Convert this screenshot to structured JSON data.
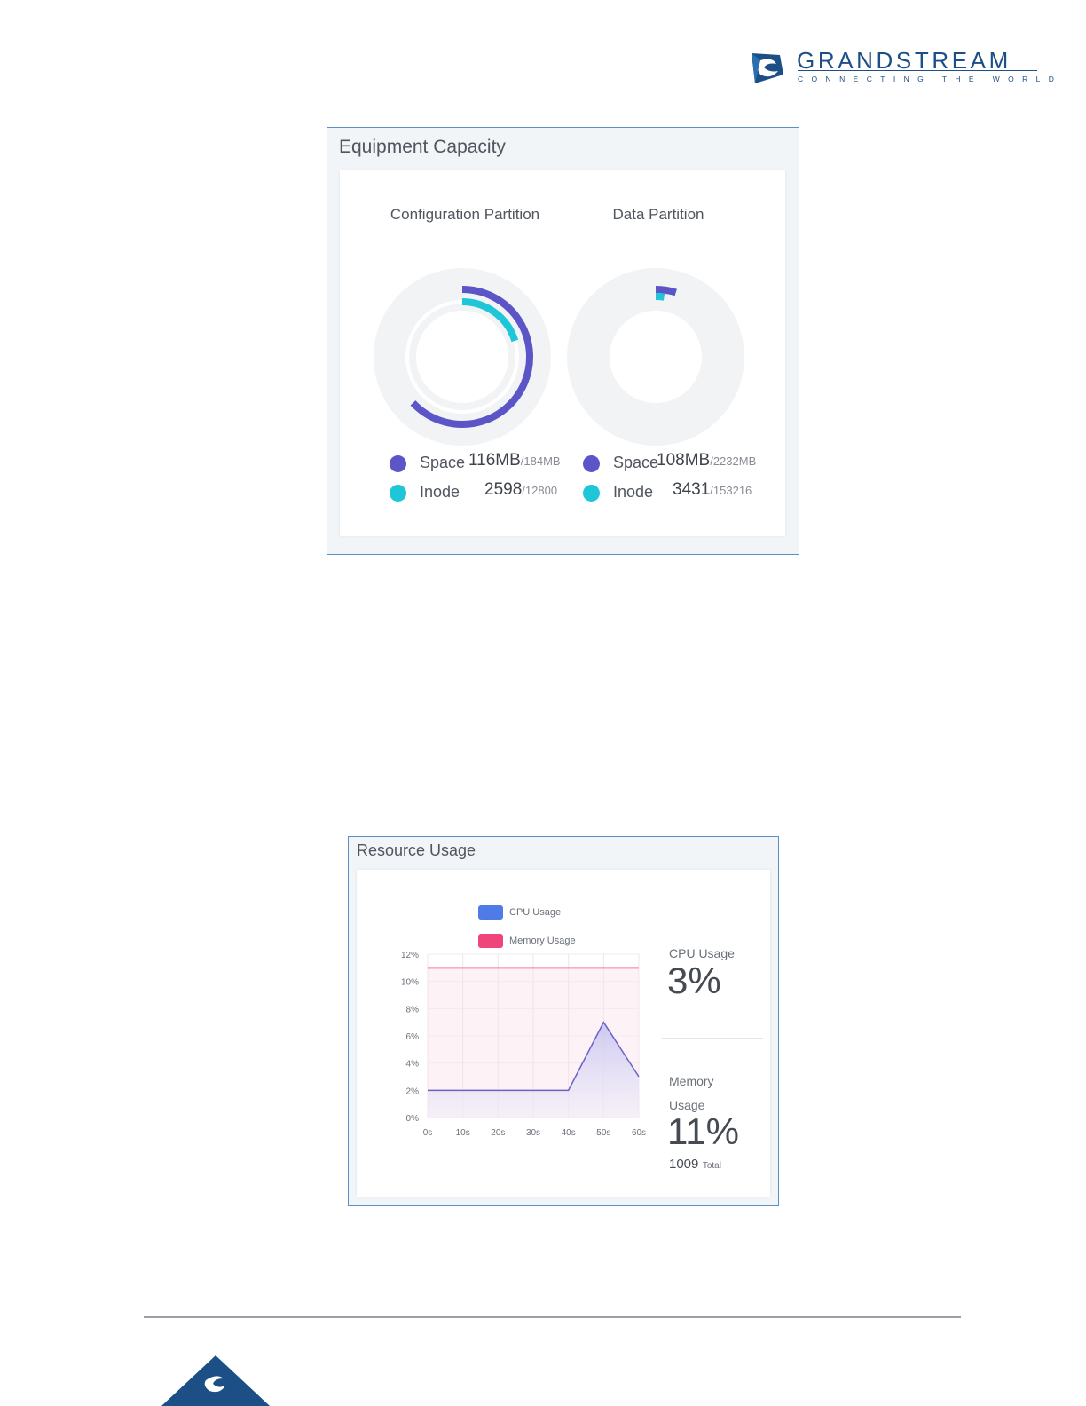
{
  "brand": {
    "name": "GRANDSTREAM",
    "tagline": "CONNECTING THE WORLD",
    "primary_color": "#1c4f86"
  },
  "equipment_capacity": {
    "title": "Equipment Capacity",
    "colors": {
      "space": "#5b55c7",
      "inode": "#1ec6d8",
      "track": "#f2f3f5"
    },
    "partitions": [
      {
        "title": "Configuration Partition",
        "space": {
          "label": "Space",
          "used": "116MB",
          "total": "/184MB",
          "used_mb": 116,
          "total_mb": 184
        },
        "inode": {
          "label": "Inode",
          "used": "2598",
          "total": "/12800",
          "used_count": 2598,
          "total_count": 12800
        }
      },
      {
        "title": "Data Partition",
        "space": {
          "label": "Space",
          "used": "108MB",
          "total": "/2232MB",
          "used_mb": 108,
          "total_mb": 2232
        },
        "inode": {
          "label": "Inode",
          "used": "3431",
          "total": "/153216",
          "used_count": 3431,
          "total_count": 153216
        }
      }
    ]
  },
  "resource_usage": {
    "title": "Resource Usage",
    "legend": {
      "cpu": "CPU Usage",
      "memory": "Memory Usage"
    },
    "colors": {
      "cpu": "#4f7be6",
      "memory": "#f0457a",
      "cpu_line": "#6a62c9",
      "memory_line": "#f47c98"
    },
    "cpu_label": "CPU Usage",
    "cpu_value": "3%",
    "memory_label_line1": "Memory",
    "memory_label_line2": "Usage",
    "memory_value": "11%",
    "memory_total_number": "1009",
    "memory_total_word": "Total"
  },
  "chart_data": {
    "type": "line",
    "x": [
      "0s",
      "10s",
      "20s",
      "30s",
      "40s",
      "50s",
      "60s"
    ],
    "series": [
      {
        "name": "CPU Usage",
        "values": [
          2,
          2,
          2,
          2,
          2,
          7,
          3
        ]
      },
      {
        "name": "Memory Usage",
        "values": [
          11,
          11,
          11,
          11,
          11,
          11,
          11
        ]
      }
    ],
    "yticks": [
      "0%",
      "2%",
      "4%",
      "6%",
      "8%",
      "10%",
      "12%"
    ],
    "ylim": [
      0,
      12
    ],
    "grid": true,
    "legend": "top"
  }
}
